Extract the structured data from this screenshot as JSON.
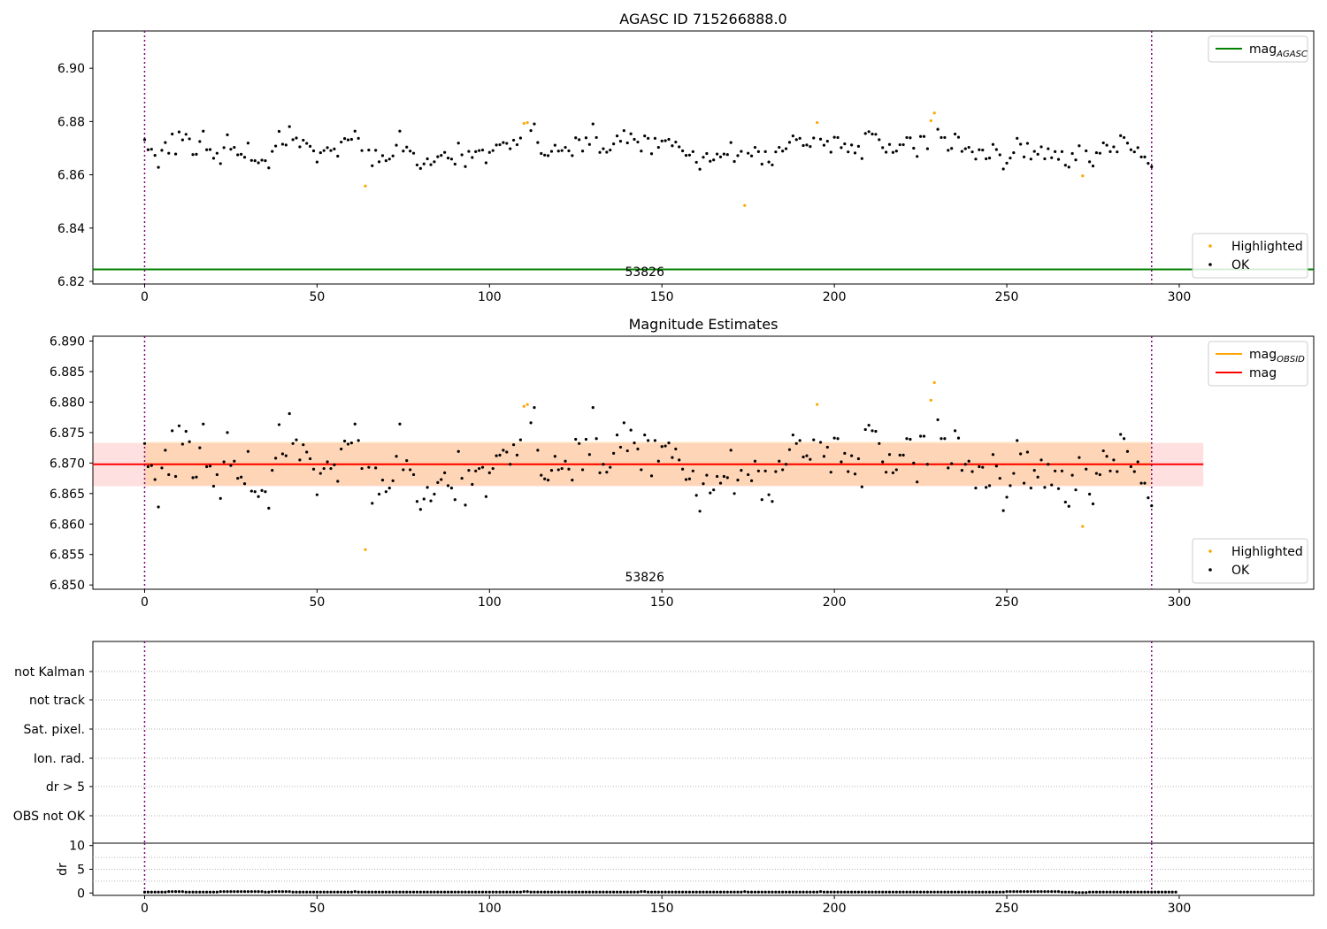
{
  "chart_data": [
    {
      "type": "scatter",
      "title": "AGASC ID 715266888.0",
      "xlim": [
        -15,
        339
      ],
      "ylim": [
        6.819,
        6.914
      ],
      "xticks": [
        0,
        50,
        100,
        150,
        200,
        250,
        300
      ],
      "yticks": [
        6.82,
        6.84,
        6.86,
        6.88,
        6.9
      ],
      "ytick_decimals": 2,
      "annotation": "53826",
      "annotation_x": 145,
      "vlines": [
        0,
        292
      ],
      "hline": {
        "label": "mag_AGASC",
        "value": 6.8245,
        "color": "#008000"
      },
      "legend_top": {
        "position": "upper right",
        "entries": [
          {
            "label": "mag",
            "sub": "AGASC",
            "color": "#008000"
          }
        ]
      },
      "legend_bottom": {
        "position": "lower right",
        "entries": [
          {
            "label": "Highlighted",
            "color": "#ffa500"
          },
          {
            "label": "OK",
            "color": "#000000"
          }
        ]
      },
      "series": [
        {
          "name": "Highlighted",
          "color": "#ffa500",
          "points": [
            [
              64,
              6.8558
            ],
            [
              110,
              6.8793
            ],
            [
              111,
              6.8796
            ],
            [
              174,
              6.8485
            ],
            [
              195,
              6.8796
            ],
            [
              228,
              6.8803
            ],
            [
              229,
              6.8832
            ],
            [
              272,
              6.8596
            ]
          ]
        },
        {
          "name": "OK",
          "color": "#000000"
        }
      ]
    },
    {
      "type": "scatter",
      "title": "Magnitude Estimates",
      "xlim": [
        -15,
        339
      ],
      "ylim": [
        6.8493,
        6.8908
      ],
      "xticks": [
        0,
        50,
        100,
        150,
        200,
        250,
        300
      ],
      "yticks": [
        6.85,
        6.855,
        6.86,
        6.865,
        6.87,
        6.875,
        6.88,
        6.885,
        6.89
      ],
      "ytick_decimals": 3,
      "annotation": "53826",
      "annotation_x": 145,
      "vlines": [
        0,
        292
      ],
      "mag": 6.8698,
      "mag_obsid": 6.8698,
      "band_outer": [
        6.8662,
        6.8733
      ],
      "band_inner": [
        6.8663,
        6.8735
      ],
      "band_x": [
        -15,
        307
      ],
      "band_inner_x": [
        0,
        292
      ],
      "legend_top": {
        "position": "upper right",
        "entries": [
          {
            "label": "mag",
            "sub": "OBSID",
            "color": "#ffa500"
          },
          {
            "label": "mag",
            "sub": "",
            "color": "#ff0000"
          }
        ]
      },
      "legend_bottom": {
        "position": "lower right",
        "entries": [
          {
            "label": "Highlighted",
            "color": "#ffa500"
          },
          {
            "label": "OK",
            "color": "#000000"
          }
        ]
      }
    },
    {
      "type": "scatter",
      "title": "",
      "categories": [
        "not Kalman",
        "not track",
        "Sat. pixel.",
        "Ion. rad.",
        "dr > 5",
        "OBS not OK"
      ],
      "flag_points": [],
      "vlines": [
        0,
        292
      ]
    },
    {
      "type": "scatter",
      "title": "",
      "ylabel": "dr",
      "xlim": [
        -15,
        339
      ],
      "ylim": [
        -0.5,
        10.5
      ],
      "yticks": [
        0,
        5,
        10
      ],
      "xticks": [
        0,
        50,
        100,
        150,
        200,
        250,
        300
      ],
      "vlines": [
        0,
        292
      ]
    }
  ],
  "ok_points": [
    6.8732,
    6.8694,
    6.8696,
    6.8673,
    6.8628,
    6.8692,
    6.8721,
    6.8681,
    6.8753,
    6.8678,
    6.8761,
    6.8731,
    6.8752,
    6.8735,
    6.8676,
    6.8677,
    6.8725,
    6.8764,
    6.8694,
    6.8695,
    6.8662,
    6.8681,
    6.8642,
    6.8702,
    6.875,
    6.8696,
    6.8703,
    6.8675,
    6.8677,
    6.8666,
    6.8719,
    6.8654,
    6.8653,
    6.8645,
    6.8655,
    6.8653,
    6.8626,
    6.8688,
    6.8708,
    6.8763,
    6.8715,
    6.8712,
    6.8781,
    6.8732,
    6.8738,
    6.8705,
    6.873,
    6.8718,
    6.8707,
    6.869,
    6.8648,
    6.8683,
    6.8691,
    6.8702,
    6.8691,
    6.8697,
    6.867,
    6.8723,
    6.8736,
    6.8731,
    6.8733,
    6.8764,
    6.8737,
    6.8691,
    6.8558,
    6.8693,
    6.8634,
    6.8692,
    6.8649,
    6.8672,
    6.8653,
    6.8659,
    6.8671,
    6.8711,
    6.8764,
    6.8689,
    6.8704,
    6.8689,
    6.8681,
    6.8637,
    6.8624,
    6.8641,
    6.866,
    6.8638,
    6.8649,
    6.8668,
    6.8673,
    6.8684,
    6.8663,
    6.8659,
    6.864,
    6.8719,
    6.8675,
    6.8631,
    6.8688,
    6.8665,
    6.8687,
    6.8691,
    6.8693,
    6.8645,
    6.8684,
    6.8691,
    6.8712,
    6.8713,
    6.8721,
    6.8718,
    6.8698,
    6.873,
    6.8713,
    6.8738,
    6.8793,
    6.8796,
    6.8766,
    6.8791,
    6.8721,
    6.868,
    6.8674,
    6.8672,
    6.8688,
    6.8711,
    6.8689,
    6.8691,
    6.8703,
    6.869,
    6.8672,
    6.8739,
    6.8732,
    6.8689,
    6.8739,
    6.8714,
    6.8791,
    6.874,
    6.8684,
    6.8698,
    6.8685,
    6.8693,
    6.8716,
    6.8746,
    6.8726,
    6.8766,
    6.872,
    6.8754,
    6.8733,
    6.8723,
    6.8689,
    6.8746,
    6.8737,
    6.8679,
    6.8737,
    6.8703,
    6.8727,
    6.8728,
    6.8733,
    6.8709,
    6.8723,
    6.8705,
    6.869,
    6.8673,
    6.8674,
    6.8687,
    6.8647,
    6.8621,
    6.8666,
    6.868,
    6.8651,
    6.8656,
    6.8678,
    6.8667,
    6.8678,
    6.8676,
    6.8721,
    6.865,
    6.8672,
    6.8688,
    6.8485,
    6.8681,
    6.8671,
    6.8703,
    6.8687,
    6.864,
    6.8687,
    6.8648,
    6.8637,
    6.8686,
    6.8703,
    6.8689,
    6.8698,
    6.8722,
    6.8746,
    6.8732,
    6.8737,
    6.871,
    6.8712,
    6.8706,
    6.8738,
    6.8796,
    6.8734,
    6.8711,
    6.8726,
    6.8685,
    6.8741,
    6.874,
    6.8702,
    6.8716,
    6.8686,
    6.8712,
    6.8682,
    6.8707,
    6.8661,
    6.8755,
    6.8762,
    6.8753,
    6.8752,
    6.8732,
    6.8702,
    6.8685,
    6.8714,
    6.8684,
    6.8689,
    6.8713,
    6.8713,
    6.874,
    6.8739,
    6.87,
    6.8669,
    6.8744,
    6.8744,
    6.8698,
    6.8803,
    6.8832,
    6.8771,
    6.874,
    6.874,
    6.8692,
    6.8699,
    6.8753,
    6.8741,
    6.8688,
    6.8698,
    6.8703,
    6.8686,
    6.8659,
    6.8694,
    6.8693,
    6.866,
    6.8663,
    6.8714,
    6.8695,
    6.8675,
    6.8622,
    6.8644,
    6.8663,
    6.8683,
    6.8737,
    6.8715,
    6.8667,
    6.8718,
    6.8659,
    6.8688,
    6.8677,
    6.8705,
    6.866,
    6.8698,
    6.8664,
    6.8687,
    6.8658,
    6.8687,
    6.8636,
    6.8629,
    6.868,
    6.8656,
    6.8709,
    6.8596,
    6.869,
    6.8649,
    6.8633,
    6.8683,
    6.8681,
    6.872,
    6.8711,
    6.8687,
    6.8705,
    6.8686,
    6.8747,
    6.874,
    6.8719,
    6.8694,
    6.8686,
    6.8702,
    6.8667,
    6.8667,
    6.8643,
    6.863
  ],
  "dr_points": [
    0.2,
    0.2,
    0.2,
    0.2,
    0.2,
    0.2,
    0.2,
    0.3,
    0.3,
    0.3,
    0.3,
    0.3,
    0.2,
    0.2,
    0.2,
    0.2,
    0.2,
    0.2,
    0.2,
    0.2,
    0.2,
    0.2,
    0.3,
    0.3,
    0.3,
    0.3,
    0.3,
    0.3,
    0.3,
    0.3,
    0.3,
    0.3,
    0.3,
    0.3,
    0.3,
    0.2,
    0.2,
    0.3,
    0.3,
    0.3,
    0.3,
    0.3,
    0.3,
    0.2,
    0.2,
    0.2,
    0.2,
    0.2,
    0.2,
    0.2,
    0.2,
    0.2,
    0.2,
    0.2,
    0.2,
    0.2,
    0.2,
    0.2,
    0.2,
    0.2,
    0.2,
    0.3,
    0.2,
    0.2,
    0.2,
    0.2,
    0.2,
    0.2,
    0.2,
    0.2,
    0.2,
    0.2,
    0.2,
    0.2,
    0.2,
    0.2,
    0.2,
    0.2,
    0.2,
    0.2,
    0.2,
    0.2,
    0.2,
    0.2,
    0.2,
    0.2,
    0.2,
    0.2,
    0.2,
    0.2,
    0.2,
    0.2,
    0.2,
    0.2,
    0.2,
    0.2,
    0.2,
    0.2,
    0.2,
    0.2,
    0.2,
    0.2,
    0.2,
    0.2,
    0.2,
    0.2,
    0.2,
    0.2,
    0.2,
    0.2,
    0.3,
    0.3,
    0.2,
    0.2,
    0.2,
    0.2,
    0.2,
    0.2,
    0.2,
    0.2,
    0.2,
    0.2,
    0.2,
    0.2,
    0.2,
    0.2,
    0.2,
    0.2,
    0.2,
    0.2,
    0.2,
    0.2,
    0.2,
    0.2,
    0.2,
    0.2,
    0.2,
    0.2,
    0.2,
    0.2,
    0.2,
    0.2,
    0.2,
    0.2,
    0.3,
    0.3,
    0.2,
    0.2,
    0.2,
    0.2,
    0.2,
    0.2,
    0.2,
    0.2,
    0.2,
    0.2,
    0.2,
    0.2,
    0.2,
    0.2,
    0.2,
    0.2,
    0.2,
    0.2,
    0.2,
    0.2,
    0.2,
    0.2,
    0.2,
    0.2,
    0.2,
    0.2,
    0.2,
    0.2,
    0.3,
    0.2,
    0.2,
    0.2,
    0.2,
    0.2,
    0.2,
    0.2,
    0.2,
    0.2,
    0.2,
    0.2,
    0.2,
    0.2,
    0.2,
    0.2,
    0.2,
    0.2,
    0.2,
    0.2,
    0.2,
    0.2,
    0.3,
    0.2,
    0.2,
    0.2,
    0.2,
    0.2,
    0.2,
    0.2,
    0.2,
    0.2,
    0.2,
    0.2,
    0.2,
    0.2,
    0.2,
    0.2,
    0.2,
    0.2,
    0.2,
    0.2,
    0.2,
    0.2,
    0.2,
    0.2,
    0.2,
    0.2,
    0.2,
    0.2,
    0.2,
    0.2,
    0.2,
    0.2,
    0.2,
    0.2,
    0.2,
    0.2,
    0.2,
    0.2,
    0.2,
    0.2,
    0.2,
    0.2,
    0.2,
    0.2,
    0.2,
    0.2,
    0.2,
    0.2,
    0.2,
    0.2,
    0.2,
    0.2,
    0.2,
    0.2,
    0.3,
    0.3,
    0.3,
    0.3,
    0.3,
    0.3,
    0.3,
    0.3,
    0.3,
    0.3,
    0.3,
    0.3,
    0.3,
    0.3,
    0.3,
    0.3,
    0.2,
    0.2,
    0.2,
    0.2,
    0.1,
    0.1,
    0.1,
    0.1,
    0.2,
    0.2,
    0.2,
    0.2,
    0.2,
    0.2,
    0.2,
    0.2,
    0.2,
    0.2,
    0.2,
    0.2,
    0.2,
    0.2,
    0.2,
    0.2,
    0.2,
    0.2,
    0.2,
    0.2,
    0.2,
    0.2,
    0.2,
    0.2,
    0.2,
    0.2
  ]
}
